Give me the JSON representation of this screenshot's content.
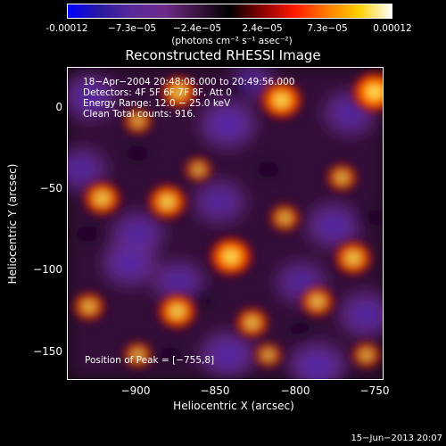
{
  "colorbar": {
    "ticks": [
      "-0.00012",
      "−7.3e−05",
      "−2.4e−05",
      "2.4e−05",
      "7.3e−05",
      "0.00012"
    ],
    "title": "(photons cm⁻² s⁻¹ asec⁻²)"
  },
  "chart_data": {
    "type": "heatmap",
    "title": "Reconstructed RHESSI Image",
    "xlabel": "Heliocentric X (arcsec)",
    "ylabel": "Heliocentric Y (arcsec)",
    "xlim": [
      -943,
      -750
    ],
    "ylim": [
      -170,
      23
    ],
    "xticks": [
      -900,
      -850,
      -800,
      -750
    ],
    "yticks": [
      0,
      -50,
      -100,
      -150
    ],
    "xtick_labels": [
      "−900",
      "−850",
      "−800",
      "−750"
    ],
    "ytick_labels": [
      "0",
      "−50",
      "−100",
      "−150"
    ],
    "color_range": [
      -0.00012,
      0.00012
    ],
    "colormap": [
      "#0000ff",
      "#3a1a8c",
      "#6a2d9a",
      "#7a2a88",
      "#000000",
      "#9a0000",
      "#ff2000",
      "#ff8000",
      "#ffd000",
      "#ffffff"
    ],
    "annotations": [
      "18−Apr−2004 20:48:08.000 to 20:49:56.000",
      "Detectors: 4F 5F 6F 7F 8F, Att 0",
      "Energy Range: 12.0 − 25.0 keV",
      "Clean    Total counts: 916."
    ],
    "peak_label": "Position of Peak = [−755,8]",
    "bright_sources": [
      {
        "x": -755,
        "y": 8,
        "level": 1.0
      },
      {
        "x": -812,
        "y": 3,
        "level": 0.9
      },
      {
        "x": -875,
        "y": 8,
        "level": 0.7
      },
      {
        "x": -843,
        "y": -94,
        "level": 0.95
      },
      {
        "x": -882,
        "y": -60,
        "level": 0.8
      },
      {
        "x": -922,
        "y": -58,
        "level": 0.75
      },
      {
        "x": -876,
        "y": -128,
        "level": 0.8
      },
      {
        "x": -768,
        "y": -95,
        "level": 0.75
      },
      {
        "x": -790,
        "y": -122,
        "level": 0.6
      },
      {
        "x": -830,
        "y": -135,
        "level": 0.6
      },
      {
        "x": -930,
        "y": -125,
        "level": 0.55
      },
      {
        "x": -775,
        "y": -45,
        "level": 0.5
      },
      {
        "x": -900,
        "y": -10,
        "level": 0.45
      },
      {
        "x": -810,
        "y": -70,
        "level": 0.5
      },
      {
        "x": -863,
        "y": -40,
        "level": 0.4
      },
      {
        "x": -900,
        "y": -155,
        "level": 0.45
      },
      {
        "x": -760,
        "y": -155,
        "level": 0.45
      },
      {
        "x": -820,
        "y": -155,
        "level": 0.4
      }
    ],
    "dim_sources": [
      {
        "x": -845,
        "y": -12,
        "level": 0.9
      },
      {
        "x": -905,
        "y": -98,
        "level": 0.85
      },
      {
        "x": -770,
        "y": -5,
        "level": 0.75
      },
      {
        "x": -930,
        "y": 5,
        "level": 0.8
      },
      {
        "x": -845,
        "y": -155,
        "level": 0.85
      },
      {
        "x": -780,
        "y": -75,
        "level": 0.8
      },
      {
        "x": -800,
        "y": -110,
        "level": 0.65
      },
      {
        "x": -850,
        "y": -60,
        "level": 0.7
      },
      {
        "x": -760,
        "y": -130,
        "level": 0.8
      },
      {
        "x": -790,
        "y": -162,
        "level": 0.9
      },
      {
        "x": -900,
        "y": -80,
        "level": 0.75
      },
      {
        "x": -830,
        "y": 15,
        "level": 0.5
      },
      {
        "x": -935,
        "y": -40,
        "level": 0.7
      },
      {
        "x": -875,
        "y": -110,
        "level": 0.7
      }
    ]
  },
  "timestamp": "15−Jun−2013 20:07"
}
